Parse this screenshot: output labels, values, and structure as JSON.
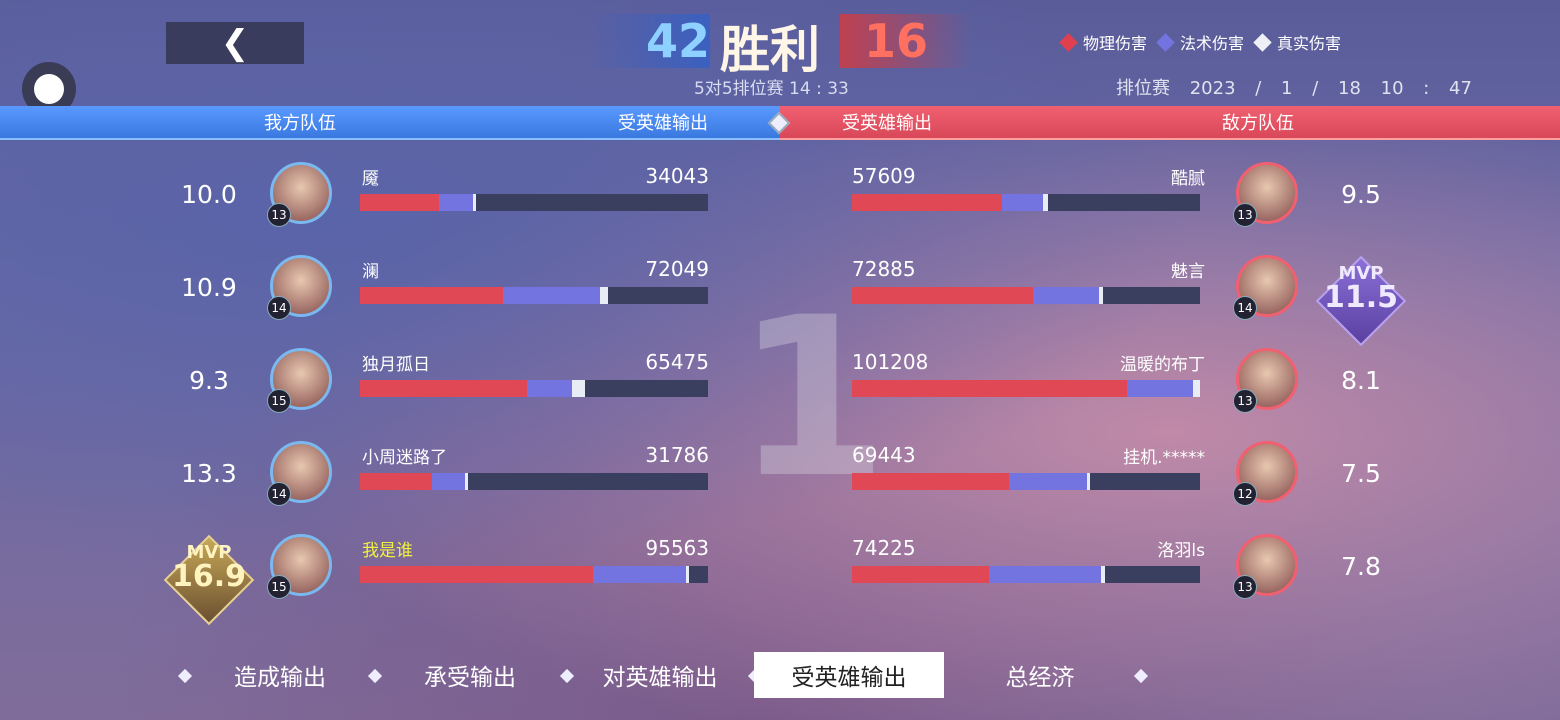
{
  "header": {
    "back_icon": "chevron-left-icon",
    "our_kills": "42",
    "result": "胜利",
    "enemy_kills": "16",
    "mode_time": "5对5排位赛 14 : 33",
    "match_type": "排位赛",
    "datetime": "2023 / 1 / 18  10 : 47"
  },
  "legend": [
    {
      "label": "物理伤害",
      "color": "#e0404e"
    },
    {
      "label": "法术伤害",
      "color": "#7474e0"
    },
    {
      "label": "真实伤害",
      "color": "#eef0f6"
    }
  ],
  "band": {
    "our_team": "我方队伍",
    "our_metric": "受英雄输出",
    "enemy_metric": "受英雄输出",
    "enemy_team": "敌方队伍"
  },
  "center_rank": "1",
  "our_team": [
    {
      "score": "10.0",
      "level": "13",
      "name": "魇",
      "value": "34043",
      "physical": 0.227,
      "magic": 0.097,
      "true": 0.01
    },
    {
      "score": "10.9",
      "level": "14",
      "name": "澜",
      "value": "72049",
      "physical": 0.41,
      "magic": 0.28,
      "true": 0.023
    },
    {
      "score": "9.3",
      "level": "15",
      "name": "独月孤日",
      "value": "65475",
      "physical": 0.48,
      "magic": 0.13,
      "true": 0.037
    },
    {
      "score": "13.3",
      "level": "14",
      "name": "小周迷路了",
      "value": "31786",
      "physical": 0.206,
      "magic": 0.095,
      "true": 0.008
    },
    {
      "score": "16.9",
      "level": "15",
      "name": "我是谁",
      "value": "95563",
      "physical": 0.67,
      "magic": 0.266,
      "true": 0.008,
      "mvp": "MVP",
      "self": true
    }
  ],
  "enemy_team": [
    {
      "score": "9.5",
      "level": "13",
      "name": "酷腻",
      "value": "57609",
      "physical": 0.43,
      "magic": 0.12,
      "true": 0.012
    },
    {
      "score": "11.5",
      "level": "14",
      "name": "魅言",
      "value": "72885",
      "physical": 0.52,
      "magic": 0.19,
      "true": 0.01,
      "mvp": "MVP"
    },
    {
      "score": "8.1",
      "level": "13",
      "name": "温暖的布丁",
      "value": "101208",
      "physical": 0.79,
      "magic": 0.19,
      "true": 0.02
    },
    {
      "score": "7.5",
      "level": "12",
      "name": "挂机.*****",
      "value": "69443",
      "physical": 0.45,
      "magic": 0.225,
      "true": 0.008
    },
    {
      "score": "7.8",
      "level": "13",
      "name": "洛羽ls",
      "value": "74225",
      "physical": 0.395,
      "magic": 0.32,
      "true": 0.012
    }
  ],
  "tabs": [
    {
      "label": "造成输出"
    },
    {
      "label": "承受输出"
    },
    {
      "label": "对英雄输出"
    },
    {
      "label": "受英雄输出",
      "active": true
    },
    {
      "label": "总经济"
    }
  ]
}
